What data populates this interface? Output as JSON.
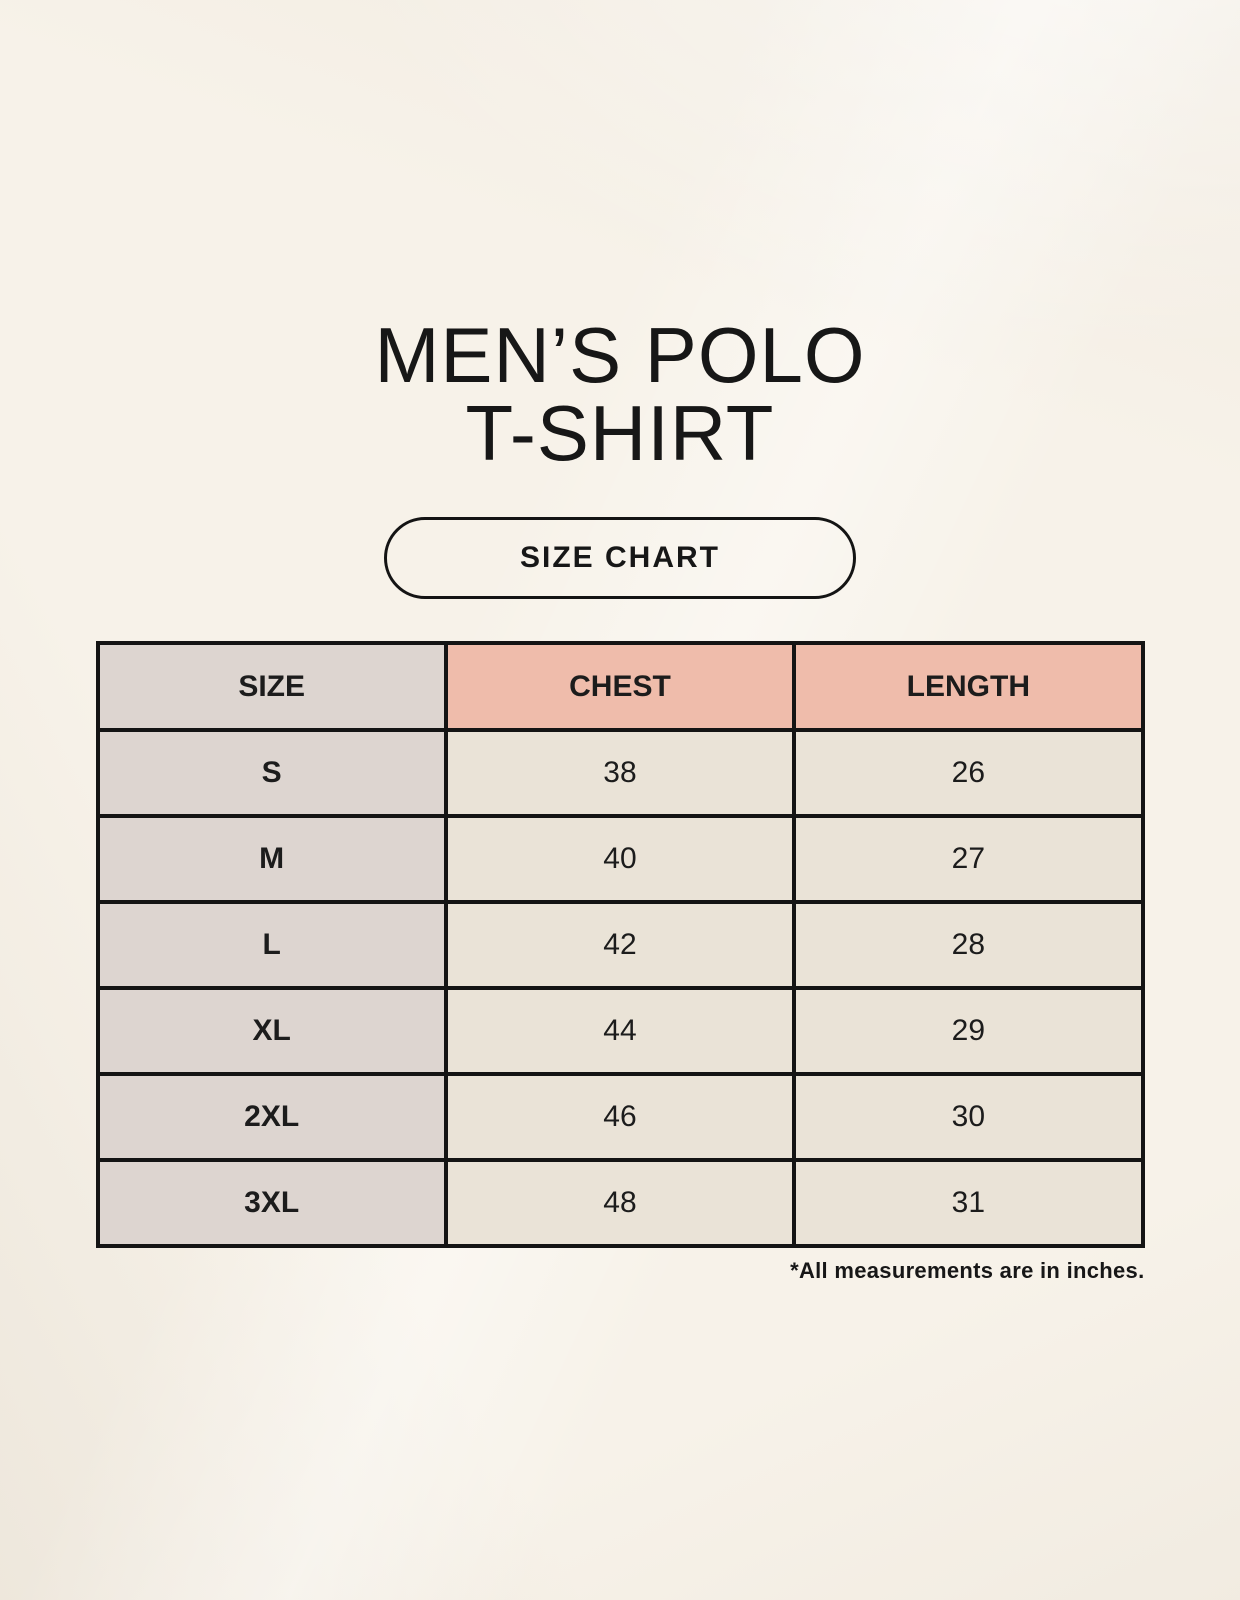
{
  "page": {
    "title_line1": "MEN’S POLO",
    "title_line2": "T-SHIRT"
  },
  "size_chart_button": {
    "label": "SIZE CHART"
  },
  "table": {
    "columns": [
      "SIZE",
      "CHEST",
      "LENGTH"
    ],
    "rows": [
      {
        "size": "S",
        "chest": "38",
        "length": "26"
      },
      {
        "size": "M",
        "chest": "40",
        "length": "27"
      },
      {
        "size": "L",
        "chest": "42",
        "length": "28"
      },
      {
        "size": "XL",
        "chest": "44",
        "length": "29"
      },
      {
        "size": "2XL",
        "chest": "46",
        "length": "30"
      },
      {
        "size": "3XL",
        "chest": "48",
        "length": "31"
      }
    ]
  },
  "footnote": "*All measurements are in inches.",
  "colors": {
    "page-bg": "#f7f2e9",
    "header-pink": "#efbcab",
    "col-gray": "#ddd5d0",
    "cell-cream": "#eae3d7",
    "line": "#141414",
    "text": "#1c1c1c"
  }
}
